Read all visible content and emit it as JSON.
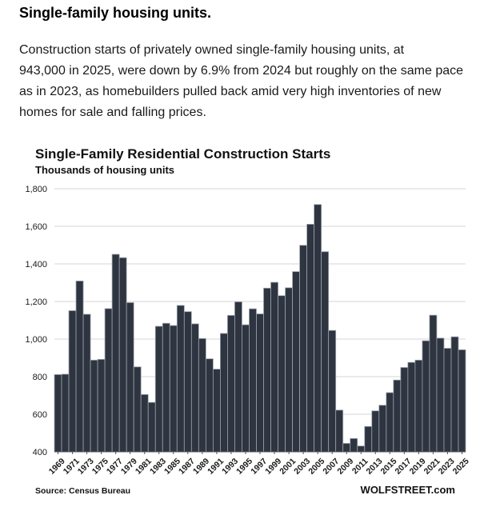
{
  "article": {
    "heading": "Single-family housing units.",
    "paragraph_lines": [
      "Construction starts of privately owned single-family housing units, at",
      "943,000 in 2025, were down by 6.9% from 2024 but roughly on the same pace",
      "as in 2023, as homebuilders pulled back amid very high inventories of new",
      "homes for sale and falling prices."
    ]
  },
  "colors": {
    "bar": "#2e3440",
    "bar_edge": "#9aa4ad",
    "grid": "#d6d6d6",
    "text": "#1a1a1a"
  },
  "chart_data": {
    "type": "bar",
    "title": "Single-Family Residential Construction Starts",
    "subtitle": "Thousands of housing units",
    "xlabel": "",
    "ylabel": "",
    "ylim": [
      400,
      1800
    ],
    "yticks": [
      "1,800",
      "1,600",
      "1,400",
      "1,200",
      "1,000",
      "800",
      "600",
      "400"
    ],
    "grid": true,
    "years": [
      1969,
      1970,
      1971,
      1972,
      1973,
      1974,
      1975,
      1976,
      1977,
      1978,
      1979,
      1980,
      1981,
      1982,
      1983,
      1984,
      1985,
      1986,
      1987,
      1988,
      1989,
      1990,
      1991,
      1992,
      1993,
      1994,
      1995,
      1996,
      1997,
      1998,
      1999,
      2000,
      2001,
      2002,
      2003,
      2004,
      2005,
      2006,
      2007,
      2008,
      2009,
      2010,
      2011,
      2012,
      2013,
      2014,
      2015,
      2016,
      2017,
      2018,
      2019,
      2020,
      2021,
      2022,
      2023,
      2024,
      2025
    ],
    "values": [
      811,
      813,
      1151,
      1309,
      1132,
      888,
      892,
      1162,
      1451,
      1433,
      1194,
      852,
      705,
      663,
      1068,
      1084,
      1072,
      1179,
      1146,
      1081,
      1003,
      895,
      840,
      1030,
      1126,
      1198,
      1076,
      1161,
      1134,
      1271,
      1302,
      1231,
      1273,
      1359,
      1499,
      1611,
      1716,
      1465,
      1046,
      622,
      445,
      471,
      431,
      535,
      618,
      648,
      715,
      782,
      849,
      876,
      888,
      991,
      1127,
      1005,
      951,
      1012,
      943
    ],
    "tick_labels": [
      "1969",
      "1971",
      "1973",
      "1975",
      "1977",
      "1979",
      "1981",
      "1983",
      "1985",
      "1987",
      "1989",
      "1991",
      "1993",
      "1995",
      "1997",
      "1999",
      "2001",
      "2003",
      "2005",
      "2007",
      "2009",
      "2011",
      "2013",
      "2015",
      "2017",
      "2019",
      "2021",
      "2023",
      "2025"
    ],
    "source": "Source: Census Bureau",
    "watermark": "WOLFSTREET.com"
  }
}
